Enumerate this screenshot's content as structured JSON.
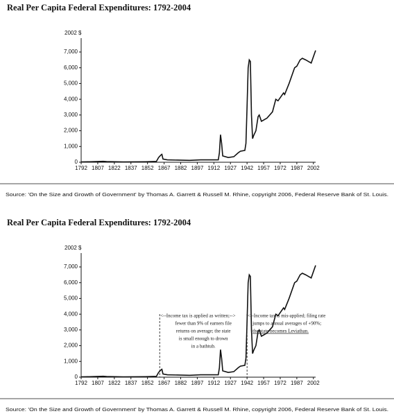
{
  "chart_data": [
    {
      "type": "line",
      "title": "Real Per Capita Federal Expenditures: 1792-2004",
      "y_unit_label": "2002 $",
      "x": [
        1792,
        1800,
        1812,
        1815,
        1830,
        1850,
        1860,
        1862,
        1864,
        1865,
        1866,
        1870,
        1890,
        1900,
        1916,
        1917,
        1918,
        1919,
        1920,
        1925,
        1930,
        1934,
        1936,
        1940,
        1941,
        1942,
        1943,
        1944,
        1945,
        1946,
        1947,
        1948,
        1950,
        1952,
        1953,
        1955,
        1960,
        1965,
        1968,
        1970,
        1975,
        1976,
        1980,
        1985,
        1987,
        1990,
        1992,
        1995,
        2000,
        2002,
        2004
      ],
      "values": [
        20,
        30,
        60,
        40,
        20,
        30,
        50,
        300,
        450,
        500,
        200,
        150,
        120,
        150,
        150,
        600,
        1750,
        1200,
        400,
        300,
        350,
        600,
        700,
        750,
        1200,
        3500,
        6000,
        6500,
        6400,
        3000,
        1500,
        1700,
        2000,
        2900,
        3000,
        2600,
        2800,
        3200,
        4000,
        3900,
        4400,
        4300,
        5000,
        6000,
        6100,
        6500,
        6600,
        6500,
        6300,
        6700,
        7100
      ],
      "color": "#111111",
      "xlim": [
        1792,
        2004
      ],
      "xticks": [
        1792,
        1807,
        1822,
        1837,
        1852,
        1867,
        1882,
        1897,
        1912,
        1927,
        1942,
        1957,
        1972,
        1987,
        2002
      ],
      "ylim": [
        0,
        7000
      ],
      "yticks": [
        0,
        {
          "value": 1000,
          "label": "1,000"
        },
        {
          "value": 2000,
          "label": "2,000"
        },
        {
          "value": 3000,
          "label": "3,000"
        },
        {
          "value": 4000,
          "label": "4,000"
        },
        {
          "value": 5000,
          "label": "5,000"
        },
        {
          "value": 6000,
          "label": "6,000"
        },
        {
          "value": 7000,
          "label": "7,000"
        }
      ],
      "source": "Source: 'On the Size and Growth of Government' by Thomas A. Garrett & Russell M. Rhine, copyright 2006, Federal Reserve Bank of St. Louis."
    },
    {
      "type": "line",
      "title": "Real Per Capita Federal Expenditures: 1792-2004",
      "y_unit_label": "2002 $",
      "x": [
        1792,
        1800,
        1812,
        1815,
        1830,
        1850,
        1860,
        1862,
        1864,
        1865,
        1866,
        1870,
        1890,
        1900,
        1916,
        1917,
        1918,
        1919,
        1920,
        1925,
        1930,
        1934,
        1936,
        1940,
        1941,
        1942,
        1943,
        1944,
        1945,
        1946,
        1947,
        1948,
        1950,
        1952,
        1953,
        1955,
        1960,
        1965,
        1968,
        1970,
        1975,
        1976,
        1980,
        1985,
        1987,
        1990,
        1992,
        1995,
        2000,
        2002,
        2004
      ],
      "values": [
        20,
        30,
        60,
        40,
        20,
        30,
        50,
        300,
        450,
        500,
        200,
        150,
        120,
        150,
        150,
        600,
        1750,
        1200,
        400,
        300,
        350,
        600,
        700,
        750,
        1200,
        3500,
        6000,
        6500,
        6400,
        3000,
        1500,
        1700,
        2000,
        2900,
        3000,
        2600,
        2800,
        3200,
        4000,
        3900,
        4400,
        4300,
        5000,
        6000,
        6100,
        6500,
        6600,
        6500,
        6300,
        6700,
        7100
      ],
      "color": "#111111",
      "xlim": [
        1792,
        2004
      ],
      "xticks": [
        1792,
        1807,
        1822,
        1837,
        1852,
        1867,
        1882,
        1897,
        1912,
        1927,
        1942,
        1957,
        1972,
        1987,
        2002
      ],
      "ylim": [
        0,
        7000
      ],
      "yticks": [
        0,
        {
          "value": 1000,
          "label": "1,000"
        },
        {
          "value": 2000,
          "label": "2,000"
        },
        {
          "value": 3000,
          "label": "3,000"
        },
        {
          "value": 4000,
          "label": "4,000"
        },
        {
          "value": 5000,
          "label": "5,000"
        },
        {
          "value": 6000,
          "label": "6,000"
        },
        {
          "value": 7000,
          "label": "7,000"
        }
      ],
      "annotations": [
        {
          "x": 1863,
          "lines": [
            "<--Income tax is applied as written;-->",
            "fewer than 9% of earners file",
            "returns on average; the state",
            "is small enough to drown",
            "in a bathtub."
          ]
        },
        {
          "x": 1942,
          "lines": [
            "<--Income tax is mis-applied; filing rate",
            "jumps to annual averages of +90%;",
            "the state becomes Leviathan."
          ]
        }
      ],
      "source": "Source: 'On the Size and Growth of Government' by Thomas A. Garrett & Russell M. Rhine, copyright 2006, Federal Reserve Bank of St. Louis."
    }
  ]
}
